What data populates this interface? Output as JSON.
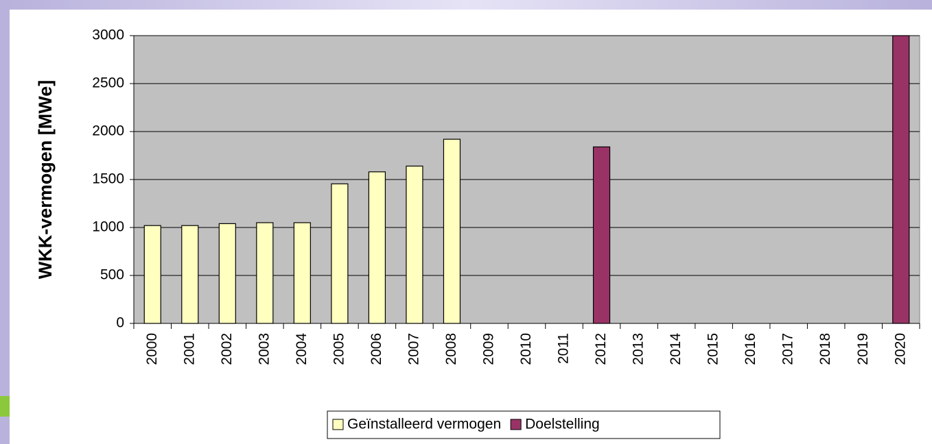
{
  "chart_data": {
    "type": "bar",
    "y_label": "WKK-vermogen [MWe]",
    "categories": [
      "2000",
      "2001",
      "2002",
      "2003",
      "2004",
      "2005",
      "2006",
      "2007",
      "2008",
      "2009",
      "2010",
      "2011",
      "2012",
      "2013",
      "2014",
      "2015",
      "2016",
      "2017",
      "2018",
      "2019",
      "2020"
    ],
    "series": [
      {
        "name": "Geïnstalleerd vermogen",
        "color": "#ffffc0",
        "values": [
          1020,
          1020,
          1040,
          1050,
          1050,
          1455,
          1580,
          1640,
          1920,
          null,
          null,
          null,
          null,
          null,
          null,
          null,
          null,
          null,
          null,
          null,
          null
        ]
      },
      {
        "name": "Doelstelling",
        "color": "#993366",
        "values": [
          null,
          null,
          null,
          null,
          null,
          null,
          null,
          null,
          null,
          null,
          null,
          null,
          1840,
          null,
          null,
          null,
          null,
          null,
          null,
          null,
          3000
        ]
      }
    ],
    "ylim": [
      0,
      3000
    ],
    "yticks": [
      0,
      500,
      1000,
      1500,
      2000,
      2500,
      3000
    ],
    "grid": true,
    "legend": "bottom"
  }
}
